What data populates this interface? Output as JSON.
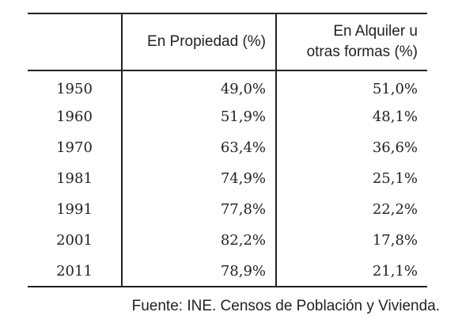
{
  "table": {
    "headers": {
      "year": "",
      "ownership": "En Propiedad (%)",
      "rental_line1": "En Alquiler u",
      "rental_line2": "otras formas (%)"
    },
    "rows": [
      {
        "year": "1950",
        "ownership": "49,0%",
        "rental": "51,0%"
      },
      {
        "year": "1960",
        "ownership": "51,9%",
        "rental": "48,1%"
      },
      {
        "year": "1970",
        "ownership": "63,4%",
        "rental": "36,6%"
      },
      {
        "year": "1981",
        "ownership": "74,9%",
        "rental": "25,1%"
      },
      {
        "year": "1991",
        "ownership": "77,8%",
        "rental": "22,2%"
      },
      {
        "year": "2001",
        "ownership": "82,2%",
        "rental": "17,8%"
      },
      {
        "year": "2011",
        "ownership": "78,9%",
        "rental": "21,1%"
      }
    ]
  },
  "source": "Fuente: INE. Censos de Población y Vivienda."
}
